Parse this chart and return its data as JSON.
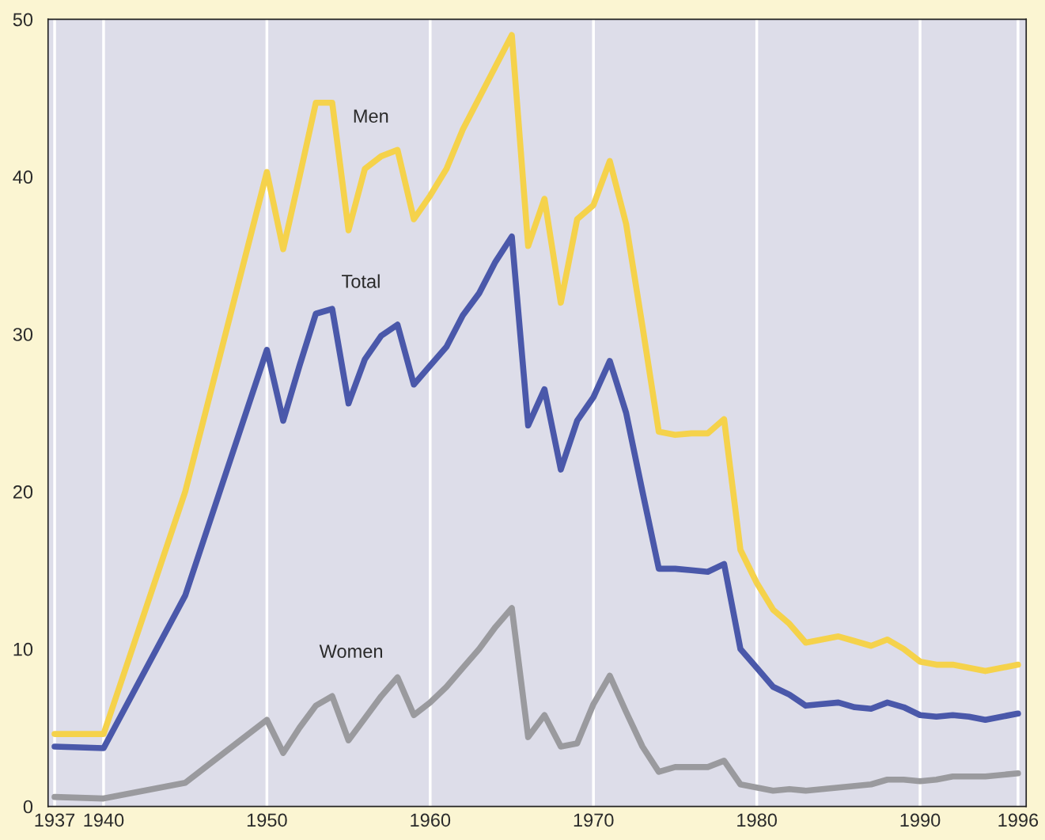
{
  "chart_data": {
    "type": "line",
    "x": [
      1937,
      1940,
      1945,
      1950,
      1951,
      1952,
      1953,
      1954,
      1955,
      1956,
      1957,
      1958,
      1959,
      1960,
      1961,
      1962,
      1963,
      1964,
      1965,
      1966,
      1967,
      1968,
      1969,
      1970,
      1971,
      1972,
      1973,
      1974,
      1975,
      1976,
      1977,
      1978,
      1979,
      1980,
      1981,
      1982,
      1983,
      1984,
      1985,
      1986,
      1987,
      1988,
      1989,
      1990,
      1991,
      1992,
      1993,
      1994,
      1996
    ],
    "series": [
      {
        "name": "Men",
        "color": "#f5d24b",
        "values": [
          4.6,
          4.6,
          20.0,
          40.3,
          35.4,
          40.0,
          44.7,
          44.7,
          36.6,
          40.5,
          41.3,
          41.7,
          37.3,
          38.8,
          40.5,
          43.0,
          45.0,
          47.0,
          49.0,
          35.6,
          38.6,
          32.0,
          37.3,
          38.2,
          41.0,
          37.0,
          30.5,
          23.8,
          23.6,
          23.7,
          23.7,
          24.6,
          16.3,
          14.2,
          12.5,
          11.6,
          10.4,
          10.6,
          10.8,
          10.5,
          10.2,
          10.6,
          10.0,
          9.2,
          9.0,
          9.0,
          8.8,
          8.6,
          9.0
        ]
      },
      {
        "name": "Total",
        "color": "#4a58aa",
        "values": [
          3.8,
          3.7,
          13.4,
          29.0,
          24.5,
          28.0,
          31.3,
          31.6,
          25.6,
          28.4,
          29.9,
          30.6,
          26.8,
          28.0,
          29.2,
          31.2,
          32.6,
          34.6,
          36.2,
          24.2,
          26.5,
          21.4,
          24.5,
          26.0,
          28.3,
          25.0,
          20.0,
          15.1,
          15.1,
          15.0,
          14.9,
          15.4,
          10.0,
          8.8,
          7.6,
          7.1,
          6.4,
          6.5,
          6.6,
          6.3,
          6.2,
          6.6,
          6.3,
          5.8,
          5.7,
          5.8,
          5.7,
          5.5,
          5.9
        ]
      },
      {
        "name": "Women",
        "color": "#9a9a9e",
        "values": [
          0.6,
          0.5,
          1.5,
          5.5,
          3.4,
          5.0,
          6.4,
          7.0,
          4.2,
          5.6,
          7.0,
          8.2,
          5.8,
          6.6,
          7.6,
          8.8,
          10.0,
          11.4,
          12.6,
          4.4,
          5.8,
          3.8,
          4.0,
          6.5,
          8.3,
          6.0,
          3.8,
          2.2,
          2.5,
          2.5,
          2.5,
          2.9,
          1.4,
          1.2,
          1.0,
          1.1,
          1.0,
          1.1,
          1.2,
          1.3,
          1.4,
          1.7,
          1.7,
          1.6,
          1.7,
          1.9,
          1.9,
          1.9,
          2.1
        ]
      }
    ],
    "xlim": [
      1936.6,
      1996.5
    ],
    "xticks": [
      1937,
      1940,
      1950,
      1960,
      1970,
      1980,
      1990,
      1996
    ],
    "ylim": [
      0,
      50
    ],
    "yticks": [
      0,
      10,
      20,
      30,
      40,
      50
    ],
    "grid": "x",
    "legend": false,
    "marker": "none",
    "line_style": "solid"
  }
}
